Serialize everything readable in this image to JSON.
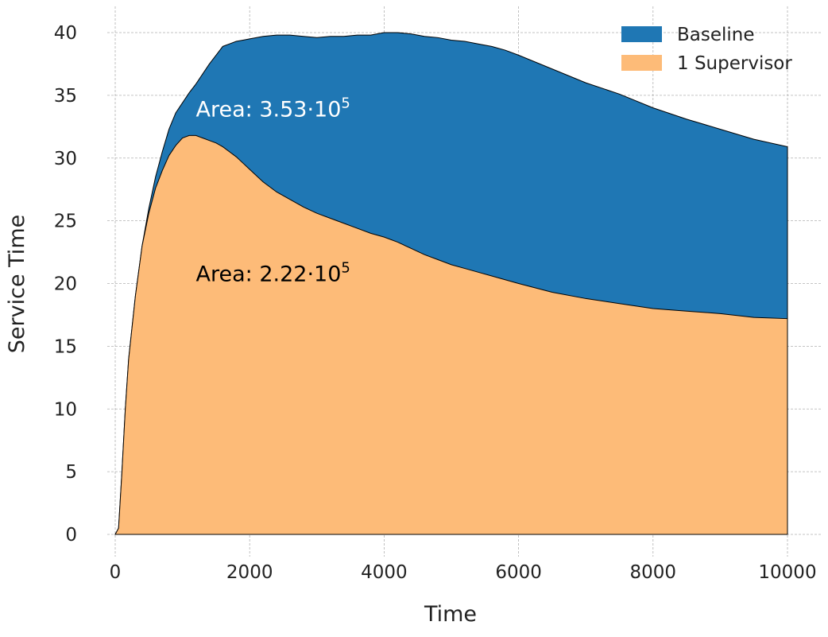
{
  "chart_data": {
    "type": "area",
    "title": "",
    "xlabel": "Time",
    "ylabel": "Service Time",
    "xlim": [
      -500,
      10500
    ],
    "ylim": [
      -2,
      42
    ],
    "x_ticks": [
      0,
      2000,
      4000,
      6000,
      8000,
      10000
    ],
    "y_ticks": [
      0,
      5,
      10,
      15,
      20,
      25,
      30,
      35,
      40
    ],
    "grid": true,
    "legend_position": "top-right",
    "series": [
      {
        "name": "Baseline",
        "color": "#1f77b4",
        "x": [
          0,
          50,
          100,
          150,
          200,
          300,
          400,
          500,
          600,
          700,
          800,
          900,
          1000,
          1100,
          1200,
          1300,
          1400,
          1500,
          1600,
          1700,
          1800,
          1900,
          2000,
          2200,
          2400,
          2600,
          2800,
          3000,
          3200,
          3400,
          3600,
          3800,
          4000,
          4200,
          4400,
          4600,
          4800,
          5000,
          5200,
          5400,
          5600,
          5800,
          6000,
          6500,
          7000,
          7500,
          8000,
          8500,
          9000,
          9500,
          10000
        ],
        "values": [
          0,
          0.5,
          5,
          10,
          14,
          19,
          23,
          26,
          28.5,
          30.5,
          32.3,
          33.6,
          34.4,
          35.2,
          35.9,
          36.7,
          37.5,
          38.2,
          38.9,
          39.1,
          39.3,
          39.4,
          39.5,
          39.7,
          39.8,
          39.8,
          39.7,
          39.6,
          39.7,
          39.7,
          39.8,
          39.8,
          40.0,
          40.0,
          39.9,
          39.7,
          39.6,
          39.4,
          39.3,
          39.1,
          38.9,
          38.6,
          38.2,
          37.1,
          36.0,
          35.1,
          34.0,
          33.1,
          32.3,
          31.5,
          30.9
        ]
      },
      {
        "name": "1 Supervisor",
        "color": "#fdbb78",
        "x": [
          0,
          50,
          100,
          150,
          200,
          300,
          400,
          500,
          600,
          700,
          800,
          900,
          1000,
          1100,
          1200,
          1300,
          1400,
          1500,
          1600,
          1700,
          1800,
          1900,
          2000,
          2200,
          2400,
          2600,
          2800,
          3000,
          3200,
          3400,
          3600,
          3800,
          4000,
          4200,
          4400,
          4600,
          4800,
          5000,
          5200,
          5400,
          5600,
          5800,
          6000,
          6500,
          7000,
          7500,
          8000,
          8500,
          9000,
          9500,
          10000
        ],
        "values": [
          0,
          0.5,
          5,
          10,
          14,
          19,
          23,
          25.6,
          27.6,
          29.0,
          30.2,
          31.0,
          31.6,
          31.8,
          31.8,
          31.6,
          31.4,
          31.2,
          30.9,
          30.5,
          30.1,
          29.6,
          29.1,
          28.1,
          27.3,
          26.7,
          26.1,
          25.6,
          25.2,
          24.8,
          24.4,
          24.0,
          23.7,
          23.3,
          22.8,
          22.3,
          21.9,
          21.5,
          21.2,
          20.9,
          20.6,
          20.3,
          20.0,
          19.3,
          18.8,
          18.4,
          18.0,
          17.8,
          17.6,
          17.3,
          17.2
        ]
      }
    ],
    "annotations": [
      {
        "prefix": "Area: 3.53·10",
        "exponent": "5",
        "x": 1200,
        "y": 33.3,
        "color": "#ffffff"
      },
      {
        "prefix": "Area: 2.22·10",
        "exponent": "5",
        "x": 1200,
        "y": 20.2,
        "color": "#000000"
      }
    ]
  }
}
